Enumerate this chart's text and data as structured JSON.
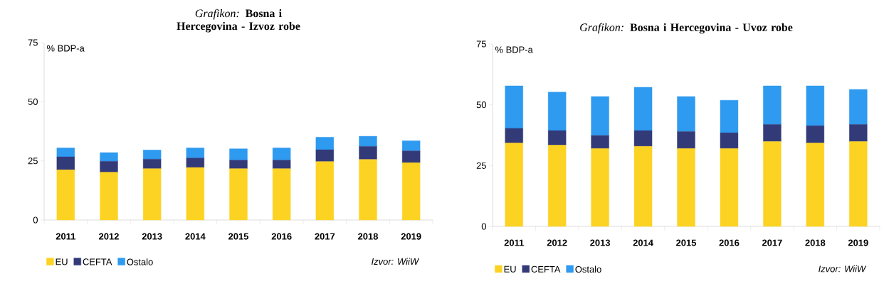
{
  "chart_data": [
    {
      "type": "bar",
      "stacked": true,
      "title": "*Grafikon:* **Bosna i Hercegovina - Izvoz robe**",
      "ylabel": "% BDP-a",
      "categories": [
        "2011",
        "2012",
        "2013",
        "2014",
        "2015",
        "2016",
        "2017",
        "2018",
        "2019"
      ],
      "series": [
        {
          "name": "EU",
          "color": "#fdd323",
          "values": [
            21.2,
            20.2,
            21.7,
            22.2,
            21.7,
            21.7,
            24.7,
            25.6,
            24.2
          ]
        },
        {
          "name": "CEFTA",
          "color": "#333a78",
          "values": [
            5.5,
            4.6,
            4.0,
            4.0,
            3.6,
            3.6,
            5.0,
            5.5,
            5.0
          ]
        },
        {
          "name": "Ostalo",
          "color": "#2e9af0",
          "values": [
            3.8,
            3.7,
            3.9,
            4.3,
            4.8,
            5.2,
            5.3,
            4.3,
            4.3
          ]
        }
      ],
      "ylim": [
        0,
        75
      ],
      "yticks": [
        0,
        25,
        50,
        75
      ],
      "legend": "bottom left",
      "annotations": [
        "Izvor: WiiW"
      ]
    },
    {
      "type": "bar",
      "stacked": true,
      "title": "*Grafikon:* **Bosna i Hercegovina - Uvoz robe**",
      "ylabel": "% BDP-a",
      "categories": [
        "2011",
        "2012",
        "2013",
        "2014",
        "2015",
        "2016",
        "2017",
        "2018",
        "2019"
      ],
      "series": [
        {
          "name": "EU",
          "color": "#fdd323",
          "values": [
            34.3,
            33.4,
            32.0,
            32.9,
            32.0,
            32.0,
            34.9,
            34.3,
            34.9
          ]
        },
        {
          "name": "CEFTA",
          "color": "#333a78",
          "values": [
            6.0,
            6.0,
            5.4,
            6.5,
            7.0,
            6.5,
            7.0,
            7.1,
            7.0
          ]
        },
        {
          "name": "Ostalo",
          "color": "#2e9af0",
          "values": [
            17.5,
            15.8,
            16.0,
            17.8,
            14.4,
            13.4,
            15.9,
            16.4,
            14.4
          ]
        }
      ],
      "ylim": [
        0,
        75
      ],
      "yticks": [
        0,
        25,
        50,
        75
      ],
      "legend": "bottom left",
      "annotations": [
        "Izvor: WiiW"
      ]
    }
  ]
}
